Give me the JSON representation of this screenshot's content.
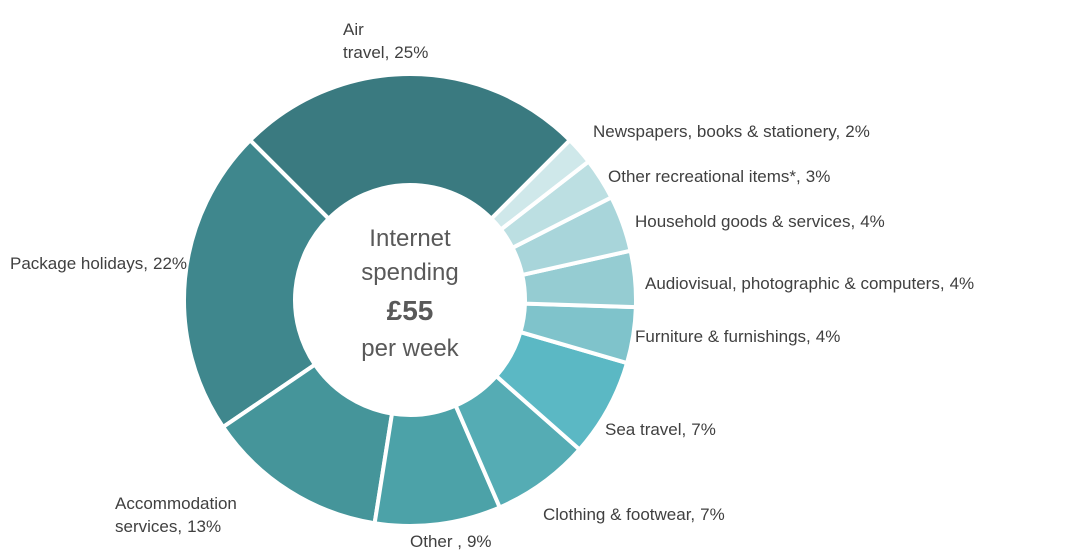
{
  "chart_data": {
    "type": "donut",
    "categories": [
      "Air travel,",
      "Newspapers, books & stationery,",
      "Other recreational items*,",
      "Household goods & services,",
      "Audiovisual, photographic & computers,",
      "Furniture & furnishings,",
      "Sea travel,",
      "Clothing & footwear,",
      "Other ,",
      "Accommodation services,",
      "Package holidays,"
    ],
    "values": [
      25,
      2,
      3,
      4,
      4,
      4,
      7,
      7,
      9,
      13,
      22
    ],
    "value_labels": [
      "25%",
      "2%",
      "3%",
      "4%",
      "4%",
      "4%",
      "7%",
      "7%",
      "9%",
      "13%",
      "22%"
    ],
    "colors": [
      "#3a7a80",
      "#cfe8ea",
      "#bcdfe2",
      "#a8d5da",
      "#95ccd2",
      "#7fc3cb",
      "#5bb8c4",
      "#55acb4",
      "#4ca2a8",
      "#45959a",
      "#3f878d"
    ],
    "center_text": [
      "Internet",
      "spending",
      "£55",
      "per week"
    ]
  }
}
